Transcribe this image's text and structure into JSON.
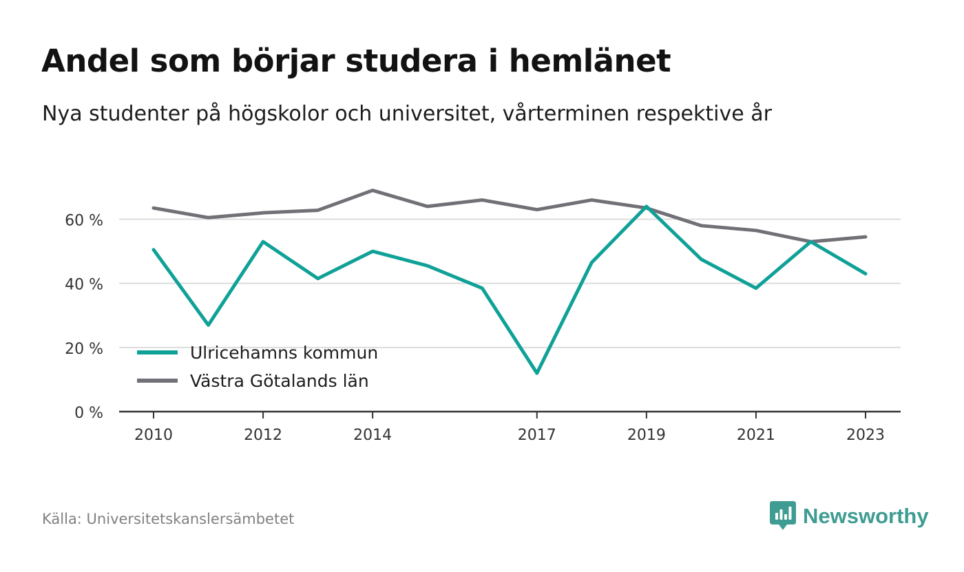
{
  "title": "Andel som börjar studera i hemlänet",
  "subtitle": "Nya studenter på högskolor och universitet, vårterminen respektive år",
  "source": "Källa: Universitetskanslersämbetet",
  "brand": {
    "name": "Newsworthy",
    "icon": "newsworthy-logo-icon",
    "color": "#3f9c92"
  },
  "chart_data": {
    "type": "line",
    "x": [
      2010,
      2011,
      2012,
      2013,
      2014,
      2015,
      2016,
      2017,
      2018,
      2019,
      2020,
      2021,
      2022,
      2023
    ],
    "x_tick_labels": [
      "2010",
      "2012",
      "2014",
      "2017",
      "2019",
      "2021",
      "2023"
    ],
    "x_tick_values": [
      2010,
      2012,
      2014,
      2017,
      2019,
      2021,
      2023
    ],
    "y_ticks": [
      0,
      20,
      40,
      60
    ],
    "y_tick_labels": [
      "0 %",
      "20 %",
      "40 %",
      "60 %"
    ],
    "ylim": [
      0,
      70
    ],
    "grid": "horizontal",
    "legend_position": "bottom-left",
    "series": [
      {
        "name": "Ulricehamns kommun",
        "color": "#0fa197",
        "values": [
          50.5,
          27,
          53,
          41.5,
          50,
          45.5,
          38.5,
          12,
          46.5,
          64,
          47.5,
          38.5,
          53,
          43
        ]
      },
      {
        "name": "Västra Götalands län",
        "color": "#727077",
        "values": [
          63.5,
          60.5,
          62,
          62.8,
          69,
          64,
          66,
          63,
          66,
          63.5,
          58,
          56.5,
          53,
          54.5
        ]
      }
    ]
  }
}
